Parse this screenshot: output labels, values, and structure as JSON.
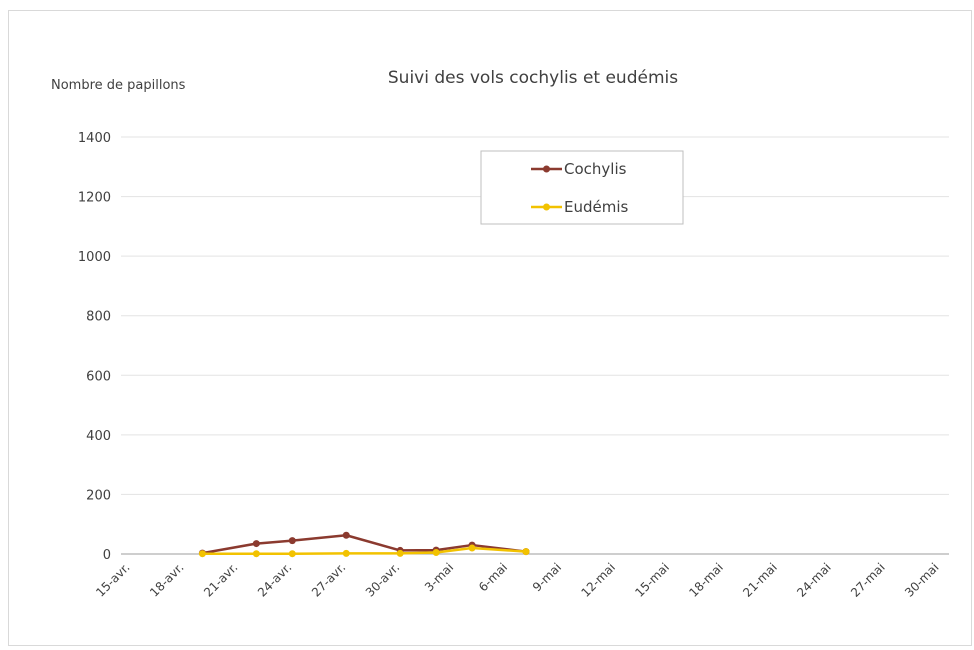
{
  "chart_data": {
    "type": "line",
    "title": "Suivi des vols cochylis et eudémis",
    "xlabel": "",
    "ylabel": "Nombre de papillons",
    "ylim": [
      0,
      1400
    ],
    "yticks": [
      0,
      200,
      400,
      600,
      800,
      1000,
      1200,
      1400
    ],
    "x_range": [
      "15-avr.",
      "30-mai"
    ],
    "tick_labels": [
      "15-avr.",
      "18-avr.",
      "21-avr.",
      "24-avr.",
      "27-avr.",
      "30-avr.",
      "3-mai",
      "6-mai",
      "9-mai",
      "12-mai",
      "15-mai",
      "18-mai",
      "21-mai",
      "24-mai",
      "27-mai",
      "30-mai"
    ],
    "grid": true,
    "legend_position": "top-center",
    "series": [
      {
        "name": "Cochylis",
        "color": "#8B3A2F",
        "points": [
          {
            "x": "19-avr.",
            "y": 3
          },
          {
            "x": "22-avr.",
            "y": 35
          },
          {
            "x": "24-avr.",
            "y": 45
          },
          {
            "x": "27-avr.",
            "y": 63
          },
          {
            "x": "30-avr.",
            "y": 12
          },
          {
            "x": "2-mai",
            "y": 13
          },
          {
            "x": "4-mai",
            "y": 30
          },
          {
            "x": "7-mai",
            "y": 8
          }
        ]
      },
      {
        "name": "Eudémis",
        "color": "#F2C200",
        "points": [
          {
            "x": "19-avr.",
            "y": 1
          },
          {
            "x": "22-avr.",
            "y": 1
          },
          {
            "x": "24-avr.",
            "y": 1
          },
          {
            "x": "27-avr.",
            "y": 2
          },
          {
            "x": "30-avr.",
            "y": 2
          },
          {
            "x": "2-mai",
            "y": 5
          },
          {
            "x": "4-mai",
            "y": 20
          },
          {
            "x": "7-mai",
            "y": 8
          }
        ]
      }
    ]
  }
}
